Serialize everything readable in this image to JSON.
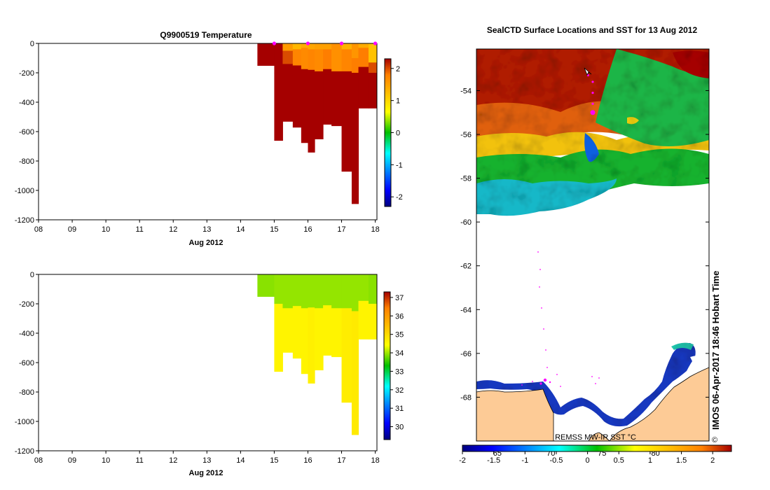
{
  "colors": {
    "land": "#fdcb96",
    "marker": "#ff00ff",
    "axis": "#000000"
  },
  "chart_data": [
    {
      "type": "heatmap",
      "id": "temp",
      "title": "Q9900519  Temperature",
      "xlabel": "Aug 2012",
      "ylabel": "",
      "x_ticks": [
        "08",
        "09",
        "10",
        "11",
        "12",
        "13",
        "14",
        "15",
        "16",
        "17",
        "18"
      ],
      "y_ticks": [
        "0",
        "-200",
        "-400",
        "-600",
        "-800",
        "-1000",
        "-1200"
      ],
      "xlim": [
        8,
        18.05
      ],
      "ylim": [
        -1200,
        0
      ],
      "colorbar": {
        "min": -2.3,
        "max": 2.3,
        "ticks": [
          "-2",
          "-1",
          "0",
          "1",
          "2"
        ],
        "tick_values": [
          -2,
          -1,
          0,
          1,
          2
        ]
      },
      "surface_markers_day": [
        15.0,
        16.0,
        17.0,
        18.0
      ],
      "profiles": [
        {
          "x0": 14.5,
          "x1": 15.0,
          "bottom": -150,
          "layers": [
            [
              0,
              -150,
              2.3
            ]
          ]
        },
        {
          "x0": 15.0,
          "x1": 15.25,
          "bottom": -660,
          "layers": [
            [
              0,
              -100,
              2.3
            ],
            [
              -100,
              -200,
              2.3
            ],
            [
              -200,
              -660,
              2.3
            ]
          ]
        },
        {
          "x0": 15.25,
          "x1": 15.55,
          "bottom": -530,
          "layers": [
            [
              0,
              -50,
              1.55
            ],
            [
              -50,
              -140,
              2.0
            ],
            [
              -140,
              -215,
              2.3
            ],
            [
              -215,
              -530,
              2.3
            ]
          ]
        },
        {
          "x0": 15.55,
          "x1": 15.8,
          "bottom": -570,
          "layers": [
            [
              0,
              -40,
              1.3
            ],
            [
              -40,
              -150,
              1.75
            ],
            [
              -150,
              -215,
              2.3
            ],
            [
              -215,
              -570,
              2.3
            ]
          ]
        },
        {
          "x0": 15.8,
          "x1": 16.0,
          "bottom": -675,
          "layers": [
            [
              0,
              -30,
              1.4
            ],
            [
              -30,
              -175,
              1.7
            ],
            [
              -175,
              -230,
              2.3
            ],
            [
              -230,
              -675,
              2.3
            ]
          ]
        },
        {
          "x0": 16.0,
          "x1": 16.2,
          "bottom": -740,
          "layers": [
            [
              0,
              -40,
              1.45
            ],
            [
              -40,
              -180,
              1.75
            ],
            [
              -180,
              -225,
              2.3
            ],
            [
              -225,
              -740,
              2.3
            ]
          ]
        },
        {
          "x0": 16.2,
          "x1": 16.45,
          "bottom": -650,
          "layers": [
            [
              0,
              -40,
              1.5
            ],
            [
              -40,
              -190,
              1.7
            ],
            [
              -190,
              -230,
              2.3
            ],
            [
              -230,
              -650,
              2.3
            ]
          ]
        },
        {
          "x0": 16.45,
          "x1": 16.7,
          "bottom": -550,
          "layers": [
            [
              0,
              -40,
              1.5
            ],
            [
              -40,
              -175,
              1.8
            ],
            [
              -175,
              -210,
              2.3
            ],
            [
              -210,
              -550,
              2.3
            ]
          ]
        },
        {
          "x0": 16.7,
          "x1": 17.0,
          "bottom": -560,
          "layers": [
            [
              0,
              -190,
              1.65
            ],
            [
              -190,
              -230,
              2.3
            ],
            [
              -230,
              -560,
              2.3
            ]
          ]
        },
        {
          "x0": 17.0,
          "x1": 17.3,
          "bottom": -870,
          "layers": [
            [
              0,
              -40,
              1.35
            ],
            [
              -40,
              -190,
              1.75
            ],
            [
              -190,
              -230,
              2.3
            ],
            [
              -230,
              -870,
              2.3
            ]
          ]
        },
        {
          "x0": 17.3,
          "x1": 17.5,
          "bottom": -1090,
          "layers": [
            [
              0,
              -100,
              1.6
            ],
            [
              -100,
              -200,
              1.8
            ],
            [
              -200,
              -1090,
              2.3
            ]
          ]
        },
        {
          "x0": 17.5,
          "x1": 17.8,
          "bottom": -440,
          "layers": [
            [
              0,
              -30,
              1.4
            ],
            [
              -30,
              -160,
              1.8
            ],
            [
              -160,
              -440,
              2.3
            ]
          ]
        },
        {
          "x0": 17.8,
          "x1": 18.05,
          "bottom": -440,
          "layers": [
            [
              0,
              -130,
              1.2
            ],
            [
              -130,
              -200,
              2.0
            ],
            [
              -200,
              -440,
              2.3
            ]
          ]
        }
      ]
    },
    {
      "type": "heatmap",
      "id": "sal",
      "title": "",
      "xlabel": "Aug 2012",
      "ylabel": "",
      "x_ticks": [
        "08",
        "09",
        "10",
        "11",
        "12",
        "13",
        "14",
        "15",
        "16",
        "17",
        "18"
      ],
      "y_ticks": [
        "0",
        "-200",
        "-400",
        "-600",
        "-800",
        "-1000",
        "-1200"
      ],
      "xlim": [
        8,
        18.05
      ],
      "ylim": [
        -1200,
        0
      ],
      "colorbar": {
        "min": 29.3,
        "max": 37.3,
        "ticks": [
          "30",
          "31",
          "32",
          "33",
          "34",
          "35",
          "36",
          "37"
        ],
        "tick_values": [
          30,
          31,
          32,
          33,
          34,
          35,
          36,
          37
        ]
      },
      "profiles": [
        {
          "x0": 14.5,
          "x1": 15.0,
          "bottom": -150,
          "layers": [
            [
              0,
              -150,
              33.9
            ]
          ]
        },
        {
          "x0": 15.0,
          "x1": 15.25,
          "bottom": -660,
          "layers": [
            [
              0,
              -200,
              33.95
            ],
            [
              -200,
              -660,
              34.6
            ]
          ]
        },
        {
          "x0": 15.25,
          "x1": 15.55,
          "bottom": -530,
          "layers": [
            [
              0,
              -230,
              33.95
            ],
            [
              -230,
              -530,
              34.6
            ]
          ]
        },
        {
          "x0": 15.55,
          "x1": 15.8,
          "bottom": -570,
          "layers": [
            [
              0,
              -215,
              33.95
            ],
            [
              -215,
              -570,
              34.6
            ]
          ]
        },
        {
          "x0": 15.8,
          "x1": 16.0,
          "bottom": -675,
          "layers": [
            [
              0,
              -230,
              33.95
            ],
            [
              -230,
              -675,
              34.6
            ]
          ]
        },
        {
          "x0": 16.0,
          "x1": 16.2,
          "bottom": -740,
          "layers": [
            [
              0,
              -225,
              33.95
            ],
            [
              -225,
              -740,
              34.65
            ]
          ]
        },
        {
          "x0": 16.2,
          "x1": 16.45,
          "bottom": -650,
          "layers": [
            [
              0,
              -230,
              33.95
            ],
            [
              -230,
              -650,
              34.6
            ]
          ]
        },
        {
          "x0": 16.45,
          "x1": 16.7,
          "bottom": -550,
          "layers": [
            [
              0,
              -210,
              33.95
            ],
            [
              -210,
              -550,
              34.6
            ]
          ]
        },
        {
          "x0": 16.7,
          "x1": 17.0,
          "bottom": -560,
          "layers": [
            [
              0,
              -230,
              33.95
            ],
            [
              -230,
              -560,
              34.6
            ]
          ]
        },
        {
          "x0": 17.0,
          "x1": 17.3,
          "bottom": -870,
          "layers": [
            [
              0,
              -230,
              33.95
            ],
            [
              -230,
              -870,
              34.7
            ]
          ]
        },
        {
          "x0": 17.3,
          "x1": 17.5,
          "bottom": -1090,
          "layers": [
            [
              0,
              -250,
              33.95
            ],
            [
              -250,
              -1090,
              34.75
            ]
          ]
        },
        {
          "x0": 17.5,
          "x1": 17.8,
          "bottom": -440,
          "layers": [
            [
              0,
              -180,
              33.95
            ],
            [
              -180,
              -440,
              34.6
            ]
          ]
        },
        {
          "x0": 17.8,
          "x1": 18.05,
          "bottom": -440,
          "layers": [
            [
              0,
              -200,
              33.9
            ],
            [
              -200,
              -440,
              34.6
            ]
          ]
        }
      ]
    },
    {
      "type": "heatmap",
      "id": "map",
      "title": "SealCTD Surface Locations and SST for 13 Aug 2012",
      "lat_ticks": [
        "-54",
        "-56",
        "-58",
        "-60",
        "-62",
        "-64",
        "-66",
        "-68"
      ],
      "lat_values": [
        -54,
        -56,
        -58,
        -60,
        -62,
        -64,
        -66,
        -68
      ],
      "lat_range": [
        -70,
        -52.1
      ],
      "lon_labels": [
        "65",
        "70",
        "75",
        "80"
      ],
      "lon_label_x_frac": [
        0.09,
        0.32,
        0.54,
        0.77
      ],
      "source_label": "REMSS MW-IR SST °C",
      "side_label": "IMOS 06-Apr-2017 18:46 Hobart Time",
      "copyright_symbol": "©",
      "colorbar": {
        "min": -2.0,
        "max": 2.3,
        "ticks": [
          "-2",
          "-1.5",
          "-1",
          "-0.5",
          "0",
          "0.5",
          "1",
          "1.5",
          "2"
        ],
        "tick_values": [
          -2,
          -1.5,
          -1,
          -0.5,
          0,
          0.5,
          1,
          1.5,
          2
        ]
      },
      "seal_track_latlon": [
        [
          -53.3,
          0.48
        ],
        [
          -53.6,
          0.5
        ],
        [
          -54.1,
          0.5
        ],
        [
          -54.6,
          0.5
        ],
        [
          -55.0,
          0.5
        ]
      ]
    }
  ]
}
